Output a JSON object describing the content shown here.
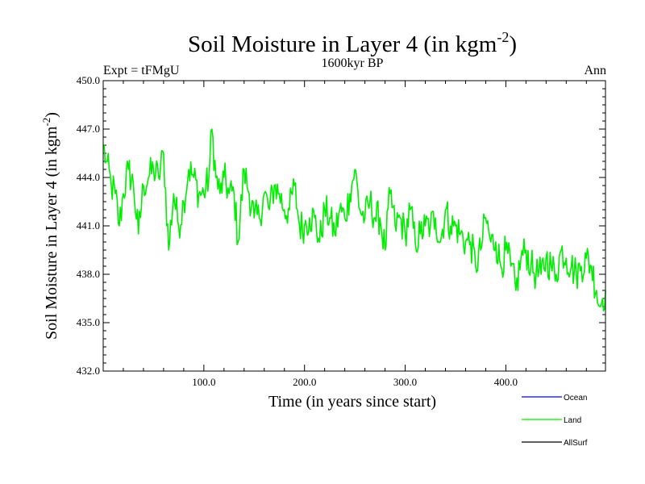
{
  "chart_data": {
    "type": "line",
    "title": "Soil Moisture in Layer 4 (in kgm",
    "title_sup": "-2",
    "title_close": ")",
    "subtitle": "1600kyr BP",
    "left_label": "Expt = tFMgU",
    "right_label": "Ann",
    "xlabel": "Time (in years since start)",
    "ylabel": "Soil Moisture in Layer 4 (in kgm",
    "ylabel_sup": "-2",
    "ylabel_close": ")",
    "xlim": [
      0,
      499
    ],
    "ylim": [
      432.0,
      450.0
    ],
    "xticks": [
      100,
      200,
      300,
      400
    ],
    "xtick_labels": [
      "100.0",
      "200.0",
      "300.0",
      "400.0"
    ],
    "yticks": [
      432,
      435,
      438,
      441,
      444,
      447,
      450
    ],
    "ytick_labels": [
      "432.0",
      "435.0",
      "438.0",
      "441.0",
      "444.0",
      "447.0",
      "450.0"
    ],
    "legend": [
      {
        "name": "Ocean",
        "color": "#0000ff"
      },
      {
        "name": "Land",
        "color": "#00ee00"
      },
      {
        "name": "AllSurf",
        "color": "#000000"
      }
    ],
    "series": [
      {
        "name": "Land",
        "color": "#00ee00",
        "anchors_x": [
          0,
          3,
          8,
          12,
          16,
          20,
          25,
          30,
          35,
          40,
          45,
          50,
          55,
          60,
          65,
          70,
          75,
          80,
          85,
          90,
          95,
          100,
          105,
          108,
          112,
          116,
          120,
          125,
          130,
          134,
          140,
          145,
          150,
          155,
          160,
          165,
          170,
          175,
          180,
          185,
          190,
          195,
          200,
          205,
          210,
          215,
          220,
          225,
          230,
          235,
          240,
          245,
          250,
          255,
          260,
          265,
          270,
          275,
          280,
          285,
          290,
          295,
          300,
          305,
          310,
          315,
          320,
          325,
          330,
          335,
          340,
          345,
          350,
          355,
          360,
          365,
          370,
          375,
          380,
          385,
          390,
          395,
          400,
          405,
          410,
          415,
          420,
          425,
          430,
          435,
          440,
          445,
          450,
          455,
          460,
          465,
          470,
          475,
          480,
          485,
          490,
          493,
          496,
          499
        ],
        "anchors_y": [
          446.0,
          445.0,
          443.5,
          443.0,
          441.0,
          443.0,
          444.5,
          443.5,
          440.5,
          443.5,
          444.0,
          444.5,
          444.0,
          445.5,
          439.5,
          443.0,
          441.0,
          442.5,
          444.5,
          444.0,
          443.0,
          443.0,
          444.0,
          447.0,
          444.0,
          443.0,
          444.0,
          443.0,
          443.0,
          440.0,
          444.5,
          443.0,
          441.5,
          441.5,
          443.0,
          442.0,
          443.5,
          443.0,
          442.0,
          442.0,
          443.5,
          441.0,
          441.0,
          441.5,
          441.5,
          440.0,
          442.0,
          441.5,
          440.5,
          442.0,
          441.5,
          443.0,
          444.5,
          442.0,
          441.5,
          442.5,
          441.5,
          441.5,
          439.5,
          443.0,
          441.0,
          441.5,
          440.5,
          442.0,
          440.0,
          440.5,
          441.0,
          441.0,
          441.5,
          440.0,
          442.0,
          441.0,
          441.0,
          440.5,
          440.0,
          440.0,
          438.5,
          439.5,
          441.5,
          440.0,
          440.0,
          438.5,
          439.5,
          438.5,
          437.0,
          439.0,
          439.5,
          438.5,
          438.0,
          438.0,
          439.0,
          438.5,
          438.0,
          439.5,
          439.0,
          438.5,
          438.0,
          438.5,
          439.0,
          438.5,
          437.0,
          436.0,
          436.5,
          437.0
        ]
      }
    ]
  }
}
